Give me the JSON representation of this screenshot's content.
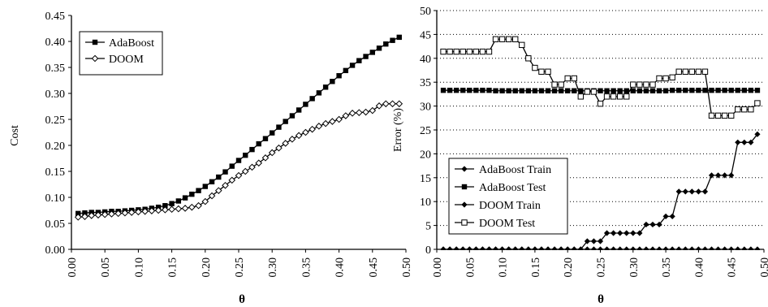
{
  "chart_data": [
    {
      "type": "line",
      "xlabel": "θ",
      "ylabel": "Cost",
      "xlim": [
        0,
        0.5
      ],
      "ylim": [
        0,
        0.45
      ],
      "xticks": [
        "0.00",
        "0.05",
        "0.10",
        "0.15",
        "0.20",
        "0.25",
        "0.30",
        "0.35",
        "0.40",
        "0.45",
        "0.50"
      ],
      "yticks": [
        "0.00",
        "0.05",
        "0.10",
        "0.15",
        "0.20",
        "0.25",
        "0.30",
        "0.35",
        "0.40",
        "0.45"
      ],
      "legend_position": "top-left",
      "grid": false,
      "series": [
        {
          "name": "AdaBoost",
          "marker": "filled-square",
          "x": [
            0.01,
            0.02,
            0.03,
            0.04,
            0.05,
            0.06,
            0.07,
            0.08,
            0.09,
            0.1,
            0.11,
            0.12,
            0.13,
            0.14,
            0.15,
            0.16,
            0.17,
            0.18,
            0.19,
            0.2,
            0.21,
            0.22,
            0.23,
            0.24,
            0.25,
            0.26,
            0.27,
            0.28,
            0.29,
            0.3,
            0.31,
            0.32,
            0.33,
            0.34,
            0.35,
            0.36,
            0.37,
            0.38,
            0.39,
            0.4,
            0.41,
            0.42,
            0.43,
            0.44,
            0.45,
            0.46,
            0.47,
            0.48,
            0.49
          ],
          "y": [
            0.069,
            0.07,
            0.071,
            0.071,
            0.072,
            0.073,
            0.073,
            0.074,
            0.075,
            0.076,
            0.077,
            0.079,
            0.081,
            0.084,
            0.088,
            0.093,
            0.099,
            0.106,
            0.113,
            0.121,
            0.13,
            0.139,
            0.149,
            0.16,
            0.171,
            0.181,
            0.192,
            0.203,
            0.213,
            0.224,
            0.235,
            0.246,
            0.257,
            0.268,
            0.279,
            0.29,
            0.301,
            0.312,
            0.323,
            0.334,
            0.344,
            0.354,
            0.363,
            0.371,
            0.379,
            0.387,
            0.395,
            0.402,
            0.408
          ]
        },
        {
          "name": "DOOM",
          "marker": "open-diamond",
          "x": [
            0.01,
            0.02,
            0.03,
            0.04,
            0.05,
            0.06,
            0.07,
            0.08,
            0.09,
            0.1,
            0.11,
            0.12,
            0.13,
            0.14,
            0.15,
            0.16,
            0.17,
            0.18,
            0.19,
            0.2,
            0.21,
            0.22,
            0.23,
            0.24,
            0.25,
            0.26,
            0.27,
            0.28,
            0.29,
            0.3,
            0.31,
            0.32,
            0.33,
            0.34,
            0.35,
            0.36,
            0.37,
            0.38,
            0.39,
            0.4,
            0.41,
            0.42,
            0.43,
            0.44,
            0.45,
            0.46,
            0.47,
            0.48,
            0.49
          ],
          "y": [
            0.062,
            0.063,
            0.065,
            0.066,
            0.067,
            0.068,
            0.069,
            0.07,
            0.071,
            0.072,
            0.073,
            0.074,
            0.075,
            0.076,
            0.077,
            0.078,
            0.079,
            0.081,
            0.084,
            0.092,
            0.103,
            0.113,
            0.123,
            0.133,
            0.142,
            0.15,
            0.158,
            0.166,
            0.176,
            0.186,
            0.195,
            0.204,
            0.212,
            0.219,
            0.225,
            0.231,
            0.237,
            0.242,
            0.246,
            0.25,
            0.257,
            0.262,
            0.263,
            0.264,
            0.267,
            0.276,
            0.28,
            0.28,
            0.28
          ]
        }
      ]
    },
    {
      "type": "line",
      "xlabel": "θ",
      "ylabel": "Error (%)",
      "xlim": [
        0,
        0.5
      ],
      "ylim": [
        0,
        50
      ],
      "xticks": [
        "0.00",
        "0.05",
        "0.10",
        "0.15",
        "0.20",
        "0.25",
        "0.30",
        "0.35",
        "0.40",
        "0.45",
        "0.50"
      ],
      "yticks": [
        "0",
        "5",
        "10",
        "15",
        "20",
        "25",
        "30",
        "35",
        "40",
        "45",
        "50"
      ],
      "legend_position": "bottom-left",
      "grid": true,
      "series": [
        {
          "name": "AdaBoost Train",
          "marker": "filled-diamond",
          "x": [
            0.01,
            0.02,
            0.03,
            0.04,
            0.05,
            0.06,
            0.07,
            0.08,
            0.09,
            0.1,
            0.11,
            0.12,
            0.13,
            0.14,
            0.15,
            0.16,
            0.17,
            0.18,
            0.19,
            0.2,
            0.21,
            0.22,
            0.23,
            0.24,
            0.25,
            0.26,
            0.27,
            0.28,
            0.29,
            0.3,
            0.31,
            0.32,
            0.33,
            0.34,
            0.35,
            0.36,
            0.37,
            0.38,
            0.39,
            0.4,
            0.41,
            0.42,
            0.43,
            0.44,
            0.45,
            0.46,
            0.47,
            0.48,
            0.49
          ],
          "y": [
            0,
            0,
            0,
            0,
            0,
            0,
            0,
            0,
            0,
            0,
            0,
            0,
            0,
            0,
            0,
            0,
            0,
            0,
            0,
            0,
            0,
            0,
            0,
            0,
            0,
            0,
            0,
            0,
            0,
            0,
            0,
            0,
            0,
            0,
            0,
            0,
            0,
            0,
            0,
            0,
            0,
            0,
            0,
            0,
            0,
            0,
            0,
            0,
            0
          ]
        },
        {
          "name": "AdaBoost Test",
          "marker": "filled-square",
          "x": [
            0.01,
            0.02,
            0.03,
            0.04,
            0.05,
            0.06,
            0.07,
            0.08,
            0.09,
            0.1,
            0.11,
            0.12,
            0.13,
            0.14,
            0.15,
            0.16,
            0.17,
            0.18,
            0.19,
            0.2,
            0.21,
            0.22,
            0.23,
            0.24,
            0.25,
            0.26,
            0.27,
            0.28,
            0.29,
            0.3,
            0.31,
            0.32,
            0.33,
            0.34,
            0.35,
            0.36,
            0.37,
            0.38,
            0.39,
            0.4,
            0.41,
            0.42,
            0.43,
            0.44,
            0.45,
            0.46,
            0.47,
            0.48,
            0.49
          ],
          "y": [
            33.3,
            33.3,
            33.3,
            33.3,
            33.3,
            33.3,
            33.3,
            33.3,
            33.2,
            33.2,
            33.2,
            33.2,
            33.2,
            33.2,
            33.2,
            33.2,
            33.2,
            33.2,
            33.2,
            33.2,
            33.2,
            33.2,
            33.2,
            33.2,
            33.2,
            33.2,
            33.2,
            33.2,
            33.2,
            33.2,
            33.2,
            33.2,
            33.2,
            33.2,
            33.2,
            33.3,
            33.3,
            33.3,
            33.3,
            33.3,
            33.3,
            33.3,
            33.3,
            33.3,
            33.3,
            33.3,
            33.3,
            33.3,
            33.3
          ]
        },
        {
          "name": "DOOM Train",
          "marker": "filled-diamond",
          "x": [
            0.01,
            0.02,
            0.03,
            0.04,
            0.05,
            0.06,
            0.07,
            0.08,
            0.09,
            0.1,
            0.11,
            0.12,
            0.13,
            0.14,
            0.15,
            0.16,
            0.17,
            0.18,
            0.19,
            0.2,
            0.21,
            0.22,
            0.23,
            0.24,
            0.25,
            0.26,
            0.27,
            0.28,
            0.29,
            0.3,
            0.31,
            0.32,
            0.33,
            0.34,
            0.35,
            0.36,
            0.37,
            0.38,
            0.39,
            0.4,
            0.41,
            0.42,
            0.43,
            0.44,
            0.45,
            0.46,
            0.47,
            0.48,
            0.49
          ],
          "y": [
            0,
            0,
            0,
            0,
            0,
            0,
            0,
            0,
            0,
            0,
            0,
            0,
            0,
            0,
            0,
            0,
            0,
            0,
            0,
            0,
            0,
            0,
            1.7,
            1.7,
            1.7,
            3.4,
            3.4,
            3.4,
            3.4,
            3.4,
            3.4,
            5.2,
            5.2,
            5.2,
            6.9,
            6.9,
            12.1,
            12.1,
            12.1,
            12.1,
            12.1,
            15.5,
            15.5,
            15.5,
            15.5,
            22.4,
            22.4,
            22.4,
            24.1
          ]
        },
        {
          "name": "DOOM Test",
          "marker": "open-square",
          "x": [
            0.01,
            0.02,
            0.03,
            0.04,
            0.05,
            0.06,
            0.07,
            0.08,
            0.09,
            0.1,
            0.11,
            0.12,
            0.13,
            0.14,
            0.15,
            0.16,
            0.17,
            0.18,
            0.19,
            0.2,
            0.21,
            0.22,
            0.23,
            0.24,
            0.25,
            0.26,
            0.27,
            0.28,
            0.29,
            0.3,
            0.31,
            0.32,
            0.33,
            0.34,
            0.35,
            0.36,
            0.37,
            0.38,
            0.39,
            0.4,
            0.41,
            0.42,
            0.43,
            0.44,
            0.45,
            0.46,
            0.47,
            0.48,
            0.49
          ],
          "y": [
            41.4,
            41.4,
            41.4,
            41.4,
            41.4,
            41.4,
            41.4,
            41.4,
            44.0,
            44.0,
            44.0,
            44.0,
            42.8,
            40.0,
            38.0,
            37.2,
            37.2,
            34.5,
            34.5,
            35.8,
            35.8,
            32.0,
            33.0,
            33.0,
            30.5,
            32.0,
            32.0,
            32.0,
            32.0,
            34.5,
            34.5,
            34.5,
            34.5,
            35.8,
            35.8,
            36.0,
            37.2,
            37.2,
            37.2,
            37.2,
            37.2,
            28.0,
            28.0,
            28.0,
            28.0,
            29.3,
            29.3,
            29.3,
            30.6
          ]
        }
      ]
    }
  ]
}
